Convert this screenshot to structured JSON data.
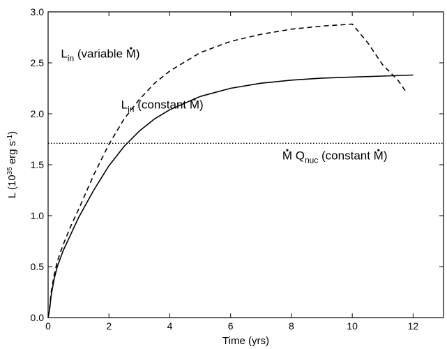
{
  "chart_data": {
    "type": "line",
    "title": "",
    "xlabel": "Time (yrs)",
    "ylabel": {
      "main": "L (10",
      "exp": "35",
      "rest": " erg s",
      "exp2": "-1",
      "close": ")"
    },
    "xlim": [
      0,
      13
    ],
    "ylim": [
      0.0,
      3.0
    ],
    "xticks": [
      "0",
      "2",
      "4",
      "6",
      "8",
      "10",
      "12"
    ],
    "yticks": [
      "0.0",
      "0.5",
      "1.0",
      "1.5",
      "2.0",
      "2.5",
      "3.0"
    ],
    "grid": false,
    "legend": "none",
    "series": [
      {
        "style": "solid",
        "color": "#000000",
        "x": [
          0,
          0.05,
          0.1,
          0.2,
          0.3,
          0.5,
          0.75,
          1.0,
          1.5,
          2.0,
          2.5,
          3.0,
          3.5,
          4.0,
          5.0,
          6.0,
          7.0,
          8.0,
          9.0,
          10.0,
          11.0,
          12.0
        ],
        "y": [
          0.0,
          0.08,
          0.22,
          0.38,
          0.5,
          0.66,
          0.82,
          0.98,
          1.25,
          1.49,
          1.68,
          1.83,
          1.95,
          2.04,
          2.17,
          2.25,
          2.3,
          2.33,
          2.35,
          2.36,
          2.37,
          2.38
        ]
      },
      {
        "style": "dashed",
        "color": "#000000",
        "x": [
          0,
          0.05,
          0.1,
          0.2,
          0.3,
          0.5,
          0.75,
          1.0,
          1.5,
          2.0,
          2.5,
          3.0,
          3.5,
          4.0,
          5.0,
          6.0,
          7.0,
          8.0,
          9.0,
          10.0,
          10.5,
          11.0,
          11.5,
          11.8
        ],
        "y": [
          0.0,
          0.1,
          0.25,
          0.42,
          0.55,
          0.72,
          0.9,
          1.06,
          1.4,
          1.7,
          1.95,
          2.14,
          2.3,
          2.42,
          2.6,
          2.71,
          2.78,
          2.83,
          2.86,
          2.88,
          2.7,
          2.48,
          2.33,
          2.2
        ]
      },
      {
        "style": "dotted",
        "color": "#000000",
        "x": [
          0,
          13
        ],
        "y": [
          1.71,
          1.71
        ]
      }
    ],
    "annotations": [
      {
        "x": 0.42,
        "y": 2.55,
        "main": "L",
        "sub": "in",
        "rest": " (variable M)",
        "dot_char": 13
      },
      {
        "x": 2.4,
        "y": 2.05,
        "main": "L",
        "sub": "in",
        "rest": " (constant M)",
        "dot_char": 13
      },
      {
        "x": 7.7,
        "y": 1.55,
        "main": "M Q",
        "sub": "nuc",
        "rest": " (constant M)",
        "dot_char_main": 0,
        "dot_char_rest": 11
      }
    ]
  }
}
